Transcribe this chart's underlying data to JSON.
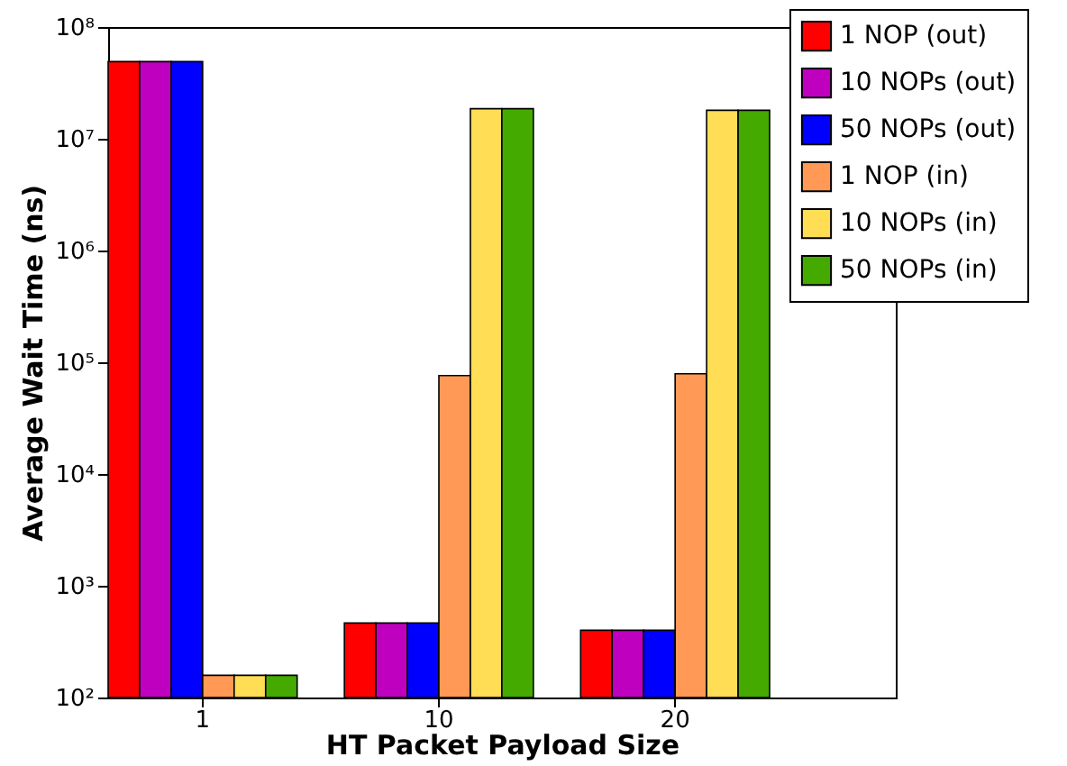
{
  "chart_data": {
    "type": "bar",
    "xlabel": "HT Packet Payload Size",
    "ylabel": "Average Wait Time (ns)",
    "categories": [
      "1",
      "10",
      "20"
    ],
    "series": [
      {
        "name": "1 NOP (out)",
        "color": "#ff0000",
        "values": [
          49000000,
          464,
          400
        ]
      },
      {
        "name": "10 NOPs (out)",
        "color": "#bf00bf",
        "values": [
          49000000,
          464,
          400
        ]
      },
      {
        "name": "50 NOPs (out)",
        "color": "#0000ff",
        "values": [
          49000000,
          464,
          400
        ]
      },
      {
        "name": "1 NOP (in)",
        "color": "#ff9955",
        "values": [
          158,
          76000,
          79000
        ]
      },
      {
        "name": "10 NOPs (in)",
        "color": "#ffdd55",
        "values": [
          158,
          18600000,
          18000000
        ]
      },
      {
        "name": "50 NOPs (in)",
        "color": "#44aa00",
        "values": [
          158,
          18600000,
          18000000
        ]
      }
    ],
    "log": "y",
    "ylim": [
      100,
      100000000
    ],
    "yticks": [
      {
        "value": 100,
        "label": "10²"
      },
      {
        "value": 1000,
        "label": "10³"
      },
      {
        "value": 10000,
        "label": "10⁴"
      },
      {
        "value": 100000,
        "label": "10⁵"
      },
      {
        "value": 1000000,
        "label": "10⁶"
      },
      {
        "value": 10000000,
        "label": "10⁷"
      },
      {
        "value": 100000000,
        "label": "10⁸"
      }
    ],
    "grid": false,
    "legend": "top right"
  }
}
